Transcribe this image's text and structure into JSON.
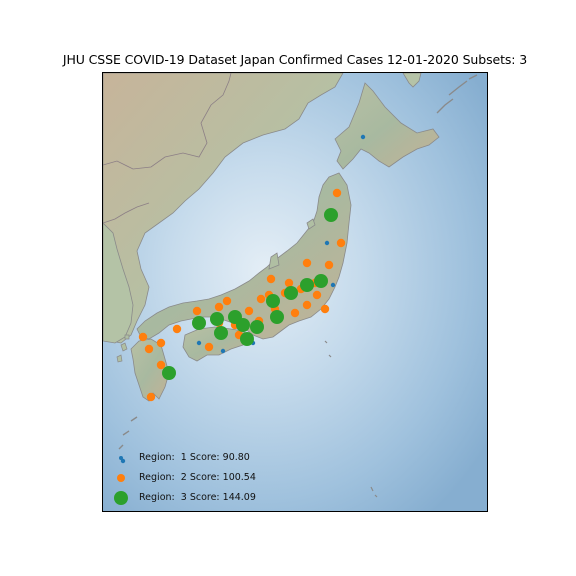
{
  "map": {
    "title": "JHU CSSE COVID-19 Dataset Japan Confirmed Cases 12-01-2020 Subsets: 3",
    "colors": {
      "ocean_light": "#dbe9f3",
      "ocean_deep": "#8fb5d6",
      "land_low": "#a9bca3",
      "land_high": "#c9b39a",
      "border": "#888888",
      "region1": "#1f77b4",
      "region2": "#ff7f0e",
      "region3": "#2ca02c"
    }
  },
  "legend": {
    "items": [
      {
        "region": "1",
        "label": "Region:  1 Score: 90.80",
        "color": "#1f77b4"
      },
      {
        "region": "2",
        "label": "Region:  2 Score: 100.54",
        "color": "#ff7f0e"
      },
      {
        "region": "3",
        "label": "Region:  3 Score: 144.09",
        "color": "#2ca02c"
      }
    ]
  }
}
